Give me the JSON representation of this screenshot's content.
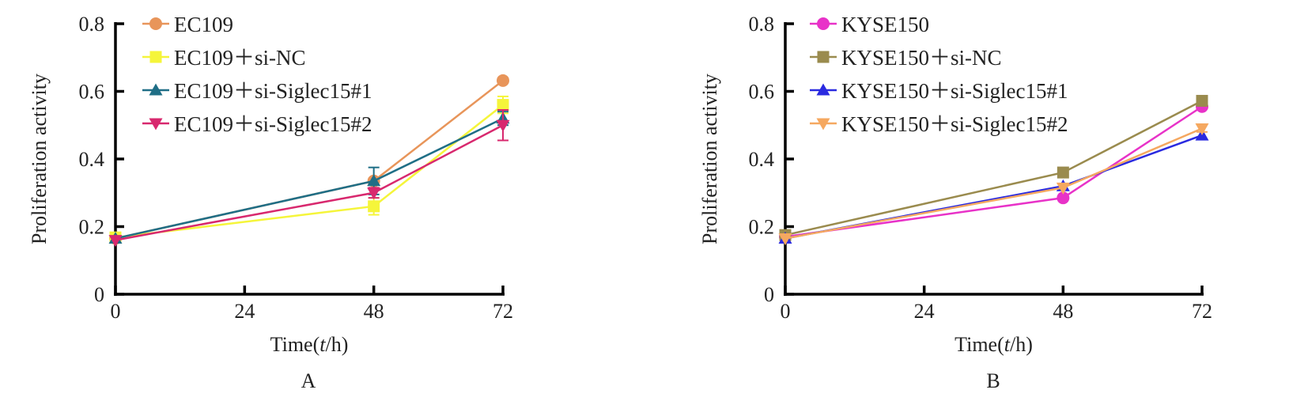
{
  "chart_data": [
    {
      "panel": "A",
      "type": "line",
      "xlabel": "Time(t/h)",
      "ylabel": "Proliferation activity",
      "xlim": [
        0,
        72
      ],
      "ylim": [
        0,
        0.8
      ],
      "xticks": [
        0,
        24,
        48,
        72
      ],
      "yticks": [
        0,
        0.2,
        0.4,
        0.6,
        0.8
      ],
      "ytick_labels": [
        "0",
        "0.2",
        "0.4",
        "0.6",
        "0.8"
      ],
      "legend_placement": "top-left",
      "x": [
        0,
        48,
        72
      ],
      "series": [
        {
          "name": "EC109",
          "values": [
            0.165,
            0.335,
            0.632
          ],
          "errors": [
            0,
            0,
            0
          ],
          "color": "#e8955a",
          "marker": "circle"
        },
        {
          "name": "EC109＋si-NC",
          "values": [
            0.168,
            0.26,
            0.56
          ],
          "errors": [
            0,
            0.025,
            0.025
          ],
          "color": "#f5f53a",
          "marker": "square"
        },
        {
          "name": "EC109＋si-Siglec15#1",
          "values": [
            0.165,
            0.335,
            0.52
          ],
          "errors": [
            0,
            0.04,
            0.02
          ],
          "color": "#1f6e86",
          "marker": "triangle-up"
        },
        {
          "name": "EC109＋si-Siglec15#2",
          "values": [
            0.16,
            0.3,
            0.5
          ],
          "errors": [
            0,
            0.015,
            0.045
          ],
          "color": "#d8286e",
          "marker": "triangle-down"
        }
      ]
    },
    {
      "panel": "B",
      "type": "line",
      "xlabel": "Time(t/h)",
      "ylabel": "Proliferation activity",
      "xlim": [
        0,
        72
      ],
      "ylim": [
        0,
        0.8
      ],
      "xticks": [
        0,
        24,
        48,
        72
      ],
      "yticks": [
        0,
        0.2,
        0.4,
        0.6,
        0.8
      ],
      "ytick_labels": [
        "0",
        "0.2",
        "0.4",
        "0.6",
        "0.8"
      ],
      "legend_placement": "top-left",
      "x": [
        0,
        48,
        72
      ],
      "series": [
        {
          "name": "KYSE150",
          "values": [
            0.17,
            0.285,
            0.555
          ],
          "errors": [
            0,
            0,
            0
          ],
          "color": "#e832c8",
          "marker": "circle"
        },
        {
          "name": "KYSE150＋si-NC",
          "values": [
            0.175,
            0.36,
            0.572
          ],
          "errors": [
            0,
            0,
            0
          ],
          "color": "#9a8b4e",
          "marker": "square"
        },
        {
          "name": "KYSE150＋si-Siglec15#1",
          "values": [
            0.165,
            0.32,
            0.47
          ],
          "errors": [
            0,
            0,
            0
          ],
          "color": "#2a2ae0",
          "marker": "triangle-up"
        },
        {
          "name": "KYSE150＋si-Siglec15#2",
          "values": [
            0.165,
            0.315,
            0.49
          ],
          "errors": [
            0,
            0,
            0.01
          ],
          "color": "#f5a860",
          "marker": "triangle-down"
        }
      ]
    }
  ]
}
